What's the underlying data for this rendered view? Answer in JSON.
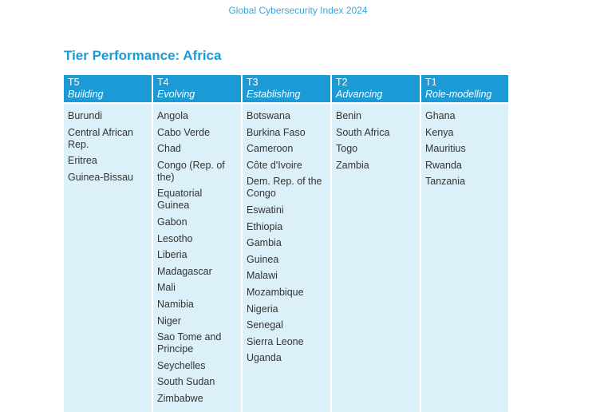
{
  "header": {
    "running_title": "Global Cybersecurity Index 2024"
  },
  "title": "Tier Performance: Africa",
  "columns": [
    {
      "tier": "T5",
      "name": "Building",
      "countries": [
        "Burundi",
        "Central African Rep.",
        "Eritrea",
        "Guinea-Bissau"
      ]
    },
    {
      "tier": "T4",
      "name": "Evolving",
      "countries": [
        "Angola",
        "Cabo Verde",
        "Chad",
        "Congo (Rep. of the)",
        "Equatorial Guinea",
        "Gabon",
        "Lesotho",
        "Liberia",
        "Madagascar",
        "Mali",
        "Namibia",
        "Niger",
        "Sao Tome and Principe",
        "Seychelles",
        "South Sudan",
        "Zimbabwe"
      ]
    },
    {
      "tier": "T3",
      "name": "Establishing",
      "countries": [
        "Botswana",
        "Burkina Faso",
        "Cameroon",
        "Côte d'Ivoire",
        "Dem. Rep. of the Congo",
        "Eswatini",
        "Ethiopia",
        "Gambia",
        "Guinea",
        "Malawi",
        "Mozambique",
        "Nigeria",
        "Senegal",
        "Sierra Leone",
        "Uganda"
      ]
    },
    {
      "tier": "T2",
      "name": "Advancing",
      "countries": [
        "Benin",
        "South Africa",
        "Togo",
        "Zambia"
      ]
    },
    {
      "tier": "T1",
      "name": "Role-modelling",
      "countries": [
        "Ghana",
        "Kenya",
        "Mauritius",
        "Rwanda",
        "Tanzania"
      ]
    }
  ],
  "colors": {
    "accent": "#1b9ad6",
    "cell_bg": "#dcf0f9",
    "text": "#333333"
  }
}
